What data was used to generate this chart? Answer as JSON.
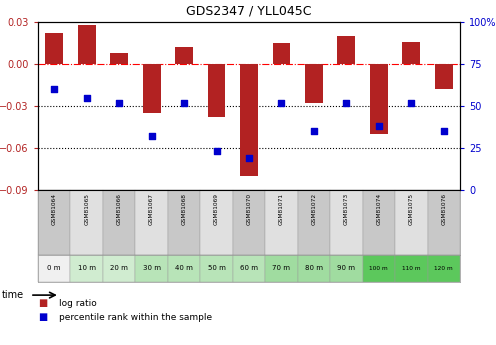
{
  "title": "GDS2347 / YLL045C",
  "samples": [
    "GSM81064",
    "GSM81065",
    "GSM81066",
    "GSM81067",
    "GSM81068",
    "GSM81069",
    "GSM81070",
    "GSM81071",
    "GSM81072",
    "GSM81073",
    "GSM81074",
    "GSM81075",
    "GSM81076"
  ],
  "time_labels": [
    "0 m",
    "10 m",
    "20 m",
    "30 m",
    "40 m",
    "50 m",
    "60 m",
    "70 m",
    "80 m",
    "90 m",
    "100 m",
    "110 m",
    "120 m"
  ],
  "log_ratio": [
    0.022,
    0.028,
    0.008,
    -0.035,
    0.012,
    -0.038,
    -0.08,
    0.015,
    -0.028,
    0.02,
    -0.05,
    0.016,
    -0.018
  ],
  "percentile": [
    60,
    55,
    52,
    32,
    52,
    23,
    19,
    52,
    35,
    52,
    38,
    52,
    35
  ],
  "bar_color": "#b22222",
  "dot_color": "#0000cd",
  "ylim_left": [
    -0.09,
    0.03
  ],
  "ylim_right": [
    0,
    100
  ],
  "yticks_left": [
    0.03,
    0.0,
    -0.03,
    -0.06,
    -0.09
  ],
  "yticks_right": [
    100,
    75,
    50,
    25,
    0
  ],
  "hline_y": [
    0,
    -0.03,
    -0.06
  ],
  "hline_styles": [
    "dashdot",
    "dotted",
    "dotted"
  ],
  "hline_colors": [
    "red",
    "black",
    "black"
  ],
  "sample_row_bg": [
    "#c8c8c8",
    "#e0e0e0",
    "#c8c8c8",
    "#e0e0e0",
    "#c8c8c8",
    "#e0e0e0",
    "#c8c8c8",
    "#e0e0e0",
    "#c8c8c8",
    "#e0e0e0",
    "#c8c8c8",
    "#e0e0e0",
    "#c8c8c8"
  ],
  "time_colors": [
    "#f0f0f0",
    "#d0ecd0",
    "#d0ecd0",
    "#b8e4b8",
    "#b8e4b8",
    "#b8e4b8",
    "#b8e4b8",
    "#a0dca0",
    "#a0dca0",
    "#a0dca0",
    "#5cc85c",
    "#5cc85c",
    "#5cc85c"
  ],
  "bg_color": "#ffffff",
  "legend_items": [
    {
      "color": "#b22222",
      "label": "log ratio"
    },
    {
      "color": "#0000cd",
      "label": "percentile rank within the sample"
    }
  ]
}
